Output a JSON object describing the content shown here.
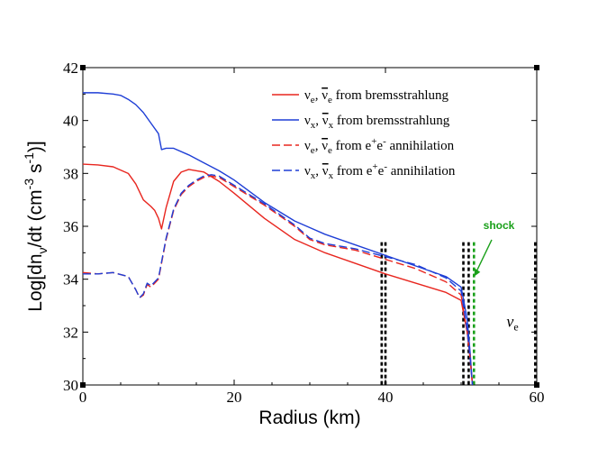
{
  "chart_data": {
    "type": "line",
    "title": "",
    "xlabel": "Radius (km)",
    "ylabel": "Log[dn_ν/dt (cm^-3 s^-1)]",
    "xlim": [
      0,
      60
    ],
    "ylim": [
      30,
      42
    ],
    "x_ticks": [
      0,
      20,
      40,
      60
    ],
    "y_ticks": [
      30,
      32,
      34,
      36,
      38,
      40,
      42
    ],
    "x_tick_labels": [
      "0",
      "20",
      "40",
      "60"
    ],
    "y_tick_labels": [
      "30",
      "32",
      "34",
      "36",
      "38",
      "40",
      "42"
    ],
    "legend_position": "top-right",
    "series": [
      {
        "name": "νe, ν̄e from bremsstrahlung",
        "legend": {
          "p1": "ν",
          "s1": "e",
          "sep": ", ",
          "p2": "ν",
          "s2": "e",
          "rest": " from bremsstrahlung"
        },
        "color": "#e8261f",
        "dash": "solid",
        "x": [
          0,
          2,
          4,
          6,
          7,
          8,
          9,
          9.5,
          10,
          10.4,
          11,
          12,
          13,
          14,
          16,
          18,
          20,
          24,
          28,
          32,
          36,
          40,
          44,
          48,
          50,
          50.8,
          51.2,
          51.5
        ],
        "y": [
          38.35,
          38.32,
          38.25,
          38.0,
          37.6,
          37.0,
          36.75,
          36.6,
          36.3,
          35.9,
          36.7,
          37.7,
          38.05,
          38.15,
          38.05,
          37.7,
          37.25,
          36.3,
          35.5,
          35.0,
          34.6,
          34.2,
          33.85,
          33.5,
          33.2,
          32.0,
          31.0,
          30.0
        ]
      },
      {
        "name": "νx, ν̄x from bremsstrahlung",
        "legend": {
          "p1": "ν",
          "s1": "x",
          "sep": ", ",
          "p2": "ν",
          "s2": "x",
          "rest": " from bremsstrahlung"
        },
        "color": "#1f3fd6",
        "dash": "solid",
        "x": [
          0,
          2,
          4,
          5,
          6,
          7,
          8,
          9,
          10,
          10.4,
          11,
          12,
          14,
          16,
          18,
          20,
          24,
          28,
          32,
          36,
          40,
          44,
          48,
          50,
          50.8,
          51.2,
          51.5
        ],
        "y": [
          41.05,
          41.05,
          41.0,
          40.95,
          40.8,
          40.6,
          40.3,
          39.9,
          39.5,
          38.9,
          38.95,
          38.95,
          38.7,
          38.4,
          38.1,
          37.75,
          36.9,
          36.2,
          35.7,
          35.3,
          34.9,
          34.5,
          34.1,
          33.7,
          32.5,
          31.2,
          30.0
        ]
      },
      {
        "name": "νe, ν̄e from e+e- annihilation",
        "legend": {
          "p1": "ν",
          "s1": "e",
          "sep": ",  ",
          "p2": "ν",
          "s2": "e",
          "rest": " from e",
          "sup1": "+",
          "mid": "e",
          "sup2": "-",
          "tail": " annihilation"
        },
        "color": "#e8261f",
        "dash": "dashed",
        "x": [
          0,
          2,
          4,
          6,
          7,
          7.5,
          8,
          8.5,
          9,
          10,
          11,
          12,
          13,
          14,
          15,
          16,
          17,
          18,
          20,
          24,
          28,
          30,
          32,
          36,
          40,
          44,
          48,
          50,
          50.8,
          51.2,
          51.5
        ],
        "y": [
          34.25,
          34.2,
          34.25,
          34.1,
          33.6,
          33.3,
          33.4,
          33.8,
          33.7,
          34.0,
          35.5,
          36.6,
          37.2,
          37.5,
          37.7,
          37.85,
          37.9,
          37.85,
          37.5,
          36.8,
          36.0,
          35.5,
          35.3,
          35.1,
          34.75,
          34.4,
          33.9,
          33.4,
          32.0,
          31.0,
          30.0
        ]
      },
      {
        "name": "νx, ν̄x from e+e- annihilation",
        "legend": {
          "p1": "ν",
          "s1": "x",
          "sep": ", ",
          "p2": "ν",
          "s2": "x",
          "rest": " from e",
          "sup1": "+",
          "mid": "e",
          "sup2": "-",
          "tail": " annihilation"
        },
        "color": "#1f3fd6",
        "dash": "dashed",
        "x": [
          0,
          2,
          4,
          6,
          7,
          7.5,
          8,
          8.5,
          9,
          10,
          11,
          12,
          13,
          14,
          15,
          16,
          17,
          18,
          20,
          24,
          28,
          30,
          32,
          36,
          40,
          44,
          48,
          50,
          50.8,
          51.2,
          51.5
        ],
        "y": [
          34.2,
          34.2,
          34.25,
          34.1,
          33.6,
          33.3,
          33.45,
          33.85,
          33.75,
          34.05,
          35.55,
          36.65,
          37.25,
          37.55,
          37.75,
          37.9,
          37.95,
          37.9,
          37.55,
          36.85,
          36.05,
          35.55,
          35.35,
          35.15,
          34.85,
          34.55,
          34.05,
          33.55,
          32.1,
          31.0,
          30.0
        ]
      }
    ],
    "vertical_lines": [
      {
        "x": 39.5,
        "color": "#000000",
        "dash": "dotted"
      },
      {
        "x": 40.0,
        "color": "#000000",
        "dash": "dotted"
      },
      {
        "x": 50.3,
        "color": "#000000",
        "dash": "dotted"
      },
      {
        "x": 51.0,
        "color": "#000000",
        "dash": "dotted"
      },
      {
        "x": 51.7,
        "color": "#1aa01a",
        "dash": "dotted"
      },
      {
        "x": 59.8,
        "color": "#000000",
        "dash": "dotted"
      }
    ],
    "annotations": [
      {
        "text": "shock",
        "x": 55.0,
        "y": 35.9,
        "color": "#1aa01a",
        "arrow_to": [
          51.7,
          34.1
        ]
      },
      {
        "text": "ν",
        "sub": "e",
        "x": 56.0,
        "y": 32.2,
        "color": "#000000"
      }
    ]
  }
}
